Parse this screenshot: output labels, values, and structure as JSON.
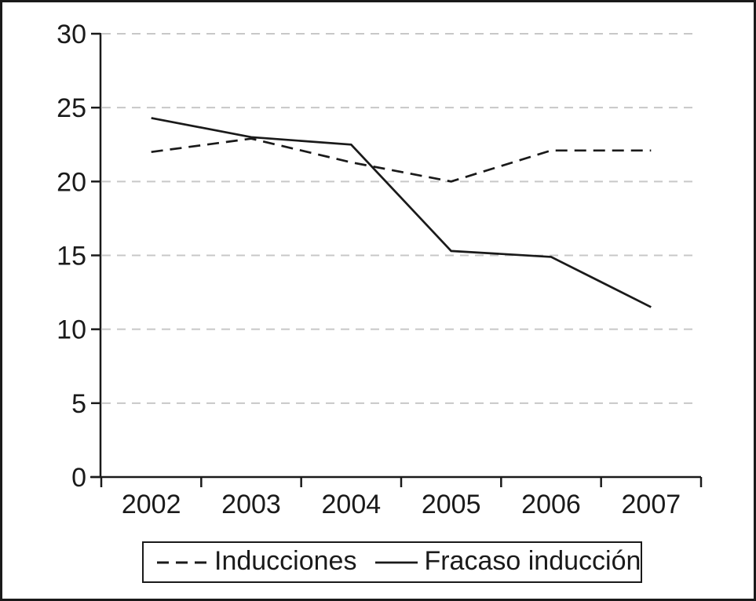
{
  "figure": {
    "background": "#ffffff",
    "border_color": "#1a1a1a"
  },
  "chart_data": {
    "type": "line",
    "title": "",
    "xlabel": "",
    "ylabel": "",
    "categories": [
      "2002",
      "2003",
      "2004",
      "2005",
      "2006",
      "2007"
    ],
    "series": [
      {
        "name": "Inducciones",
        "style": "dashed",
        "values": [
          22,
          22.9,
          21.3,
          20,
          22.1,
          22.1
        ]
      },
      {
        "name": "Fracaso inducción",
        "style": "solid",
        "values": [
          24.3,
          23,
          22.5,
          15.3,
          14.9,
          11.5
        ]
      }
    ],
    "ylim": [
      0,
      30
    ],
    "y_ticks": [
      0,
      5,
      10,
      15,
      20,
      25,
      30
    ],
    "grid": "horizontal-dashed",
    "legend_position": "bottom",
    "colors": {
      "line": "#1a1a1a",
      "grid": "#c8c8c8",
      "text": "#1a1a1a"
    }
  }
}
